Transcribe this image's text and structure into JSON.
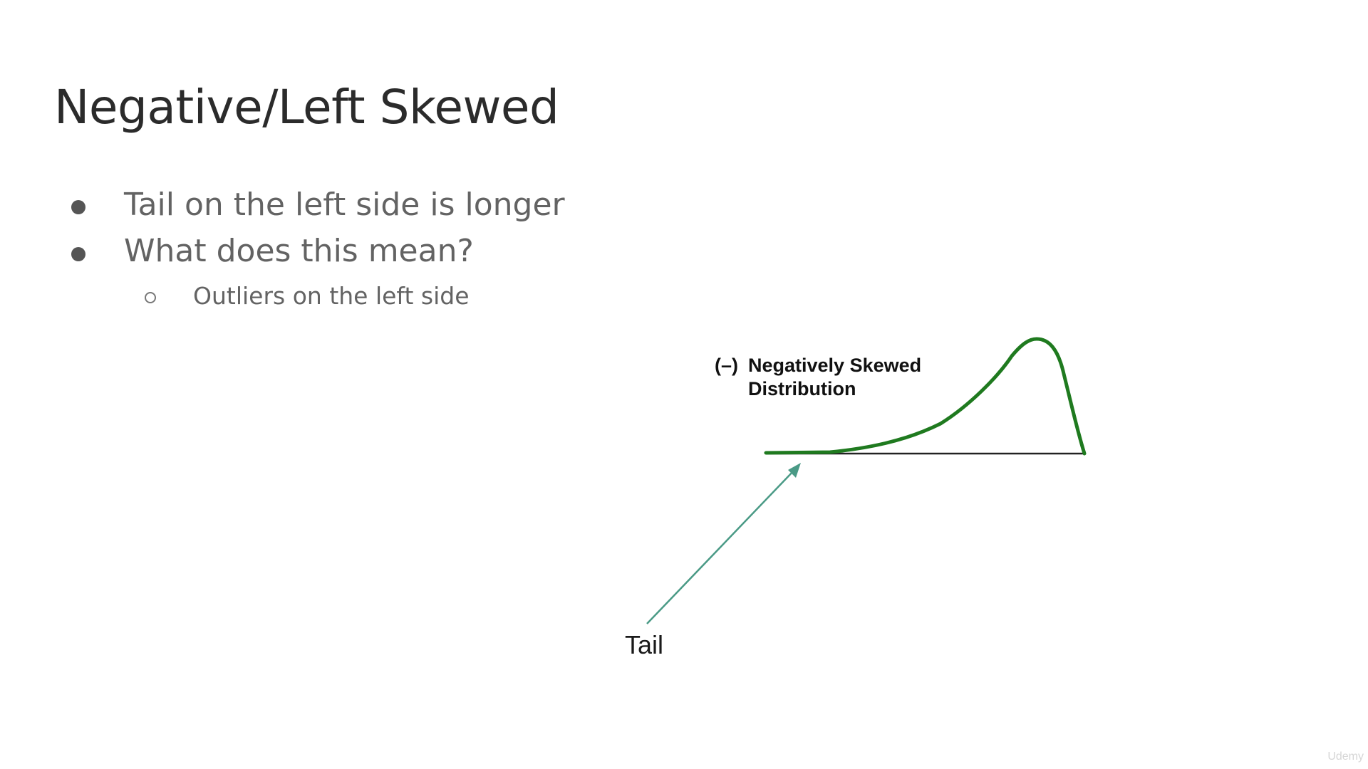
{
  "slide": {
    "title": "Negative/Left Skewed",
    "bullets": [
      {
        "text": "Tail on the left side is longer",
        "level": 1
      },
      {
        "text": "What does this mean?",
        "level": 1
      },
      {
        "text": "Outliers on the left side",
        "level": 2
      }
    ]
  },
  "diagram": {
    "distribution_sign": "(–)",
    "distribution_label_line1": "Negatively Skewed",
    "distribution_label_line2": "Distribution",
    "tail_label": "Tail",
    "curve_color": "#1f7a1f",
    "arrow_color": "#4a9a86",
    "baseline_color": "#222222"
  },
  "watermark": "Udemy"
}
